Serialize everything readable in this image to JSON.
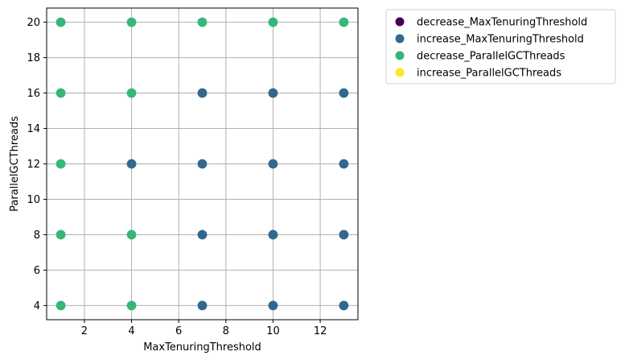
{
  "chart_data": {
    "type": "scatter",
    "title": "",
    "xlabel": "MaxTenuringThreshold",
    "ylabel": "ParallelGCThreads",
    "xlim": [
      0.4,
      13.6
    ],
    "ylim": [
      3.2,
      20.8
    ],
    "xticks": [
      2,
      4,
      6,
      8,
      10,
      12
    ],
    "yticks": [
      4,
      6,
      8,
      10,
      12,
      14,
      16,
      18,
      20
    ],
    "grid": true,
    "legend_position": "outside-top-right",
    "series": [
      {
        "name": "decrease_MaxTenuringThreshold",
        "color": "#440154",
        "points": []
      },
      {
        "name": "increase_MaxTenuringThreshold",
        "color": "#31688e",
        "points": [
          [
            4,
            12
          ],
          [
            7,
            4
          ],
          [
            7,
            8
          ],
          [
            7,
            12
          ],
          [
            7,
            16
          ],
          [
            10,
            4
          ],
          [
            10,
            8
          ],
          [
            10,
            12
          ],
          [
            10,
            16
          ],
          [
            13,
            4
          ],
          [
            13,
            8
          ],
          [
            13,
            12
          ],
          [
            13,
            16
          ]
        ]
      },
      {
        "name": "decrease_ParallelGCThreads",
        "color": "#35b779",
        "points": [
          [
            1,
            4
          ],
          [
            1,
            8
          ],
          [
            1,
            12
          ],
          [
            1,
            16
          ],
          [
            1,
            20
          ],
          [
            4,
            4
          ],
          [
            4,
            8
          ],
          [
            4,
            16
          ],
          [
            4,
            20
          ],
          [
            7,
            20
          ],
          [
            10,
            20
          ],
          [
            13,
            20
          ]
        ]
      },
      {
        "name": "increase_ParallelGCThreads",
        "color": "#fde725",
        "points": []
      }
    ]
  }
}
